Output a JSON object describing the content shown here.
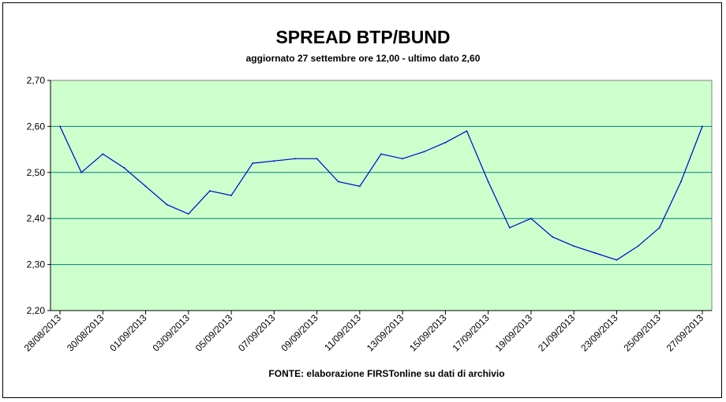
{
  "chart_data": {
    "type": "line",
    "title": "SPREAD BTP/BUND",
    "subtitle": "aggiornato 27 settembre ore 12,00 - ultimo dato 2,60",
    "source": "FONTE: elaborazione FIRSTonline su dati di archivio",
    "xlabel": "",
    "ylabel": "",
    "x_tick_labels": [
      "28/08/2013",
      "30/08/2013",
      "01/09/2013",
      "03/09/2013",
      "05/09/2013",
      "07/09/2013",
      "09/09/2013",
      "11/09/2013",
      "13/09/2013",
      "15/09/2013",
      "17/09/2013",
      "19/09/2013",
      "21/09/2013",
      "23/09/2013",
      "25/09/2013",
      "27/09/2013"
    ],
    "y_tick_labels": [
      "2,20",
      "2,30",
      "2,40",
      "2,50",
      "2,60",
      "2,70"
    ],
    "ylim": [
      2.2,
      2.7
    ],
    "xlim": [
      "2013-08-28",
      "2013-09-27"
    ],
    "grid": true,
    "plot_background": "#ccffcc",
    "line_color": "#0000cc",
    "grid_color": "#008080",
    "series": [
      {
        "x": [
          "2013-08-28",
          "2013-08-29",
          "2013-08-30",
          "2013-08-31",
          "2013-09-01",
          "2013-09-02",
          "2013-09-03",
          "2013-09-04",
          "2013-09-05",
          "2013-09-06",
          "2013-09-07",
          "2013-09-08",
          "2013-09-09",
          "2013-09-10",
          "2013-09-11",
          "2013-09-12",
          "2013-09-13",
          "2013-09-14",
          "2013-09-15",
          "2013-09-16",
          "2013-09-17",
          "2013-09-18",
          "2013-09-19",
          "2013-09-20",
          "2013-09-21",
          "2013-09-22",
          "2013-09-23",
          "2013-09-24",
          "2013-09-25",
          "2013-09-26",
          "2013-09-27"
        ],
        "values": [
          2.6,
          2.5,
          2.54,
          2.51,
          2.47,
          2.43,
          2.41,
          2.46,
          2.45,
          2.52,
          2.525,
          2.53,
          2.53,
          2.48,
          2.47,
          2.54,
          2.53,
          2.545,
          2.565,
          2.59,
          2.48,
          2.38,
          2.4,
          2.36,
          2.34,
          2.325,
          2.31,
          2.34,
          2.38,
          2.48,
          2.6
        ]
      }
    ]
  }
}
